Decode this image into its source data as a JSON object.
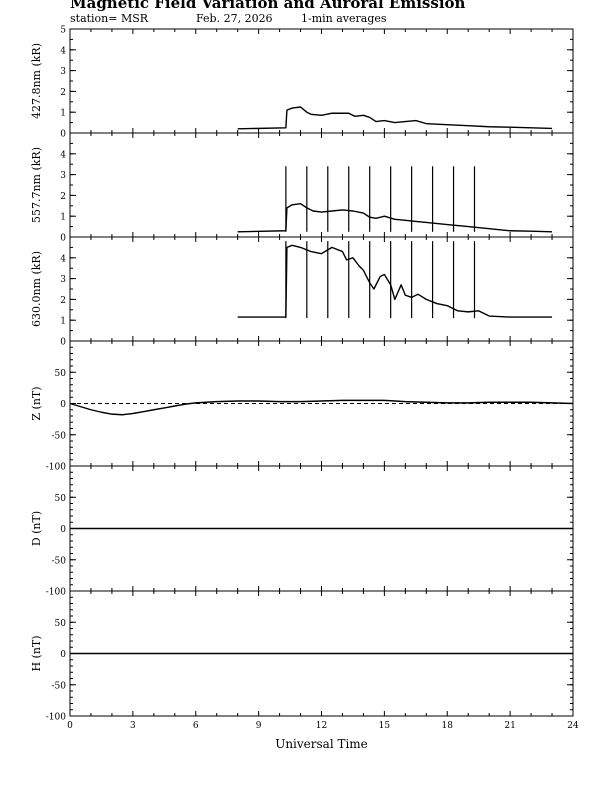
{
  "header": {
    "title": "Magnetic Field Variation and Auroral Emission",
    "station": "station= MSR",
    "date": "Feb. 27, 2026",
    "averaging": "1-min averages"
  },
  "chart_data": {
    "type": "line",
    "xlabel": "Universal Time",
    "xlim": [
      0,
      24
    ],
    "xticks": [
      0,
      3,
      6,
      9,
      12,
      15,
      18,
      21,
      24
    ],
    "panels": [
      {
        "id": "4278",
        "ylabel": "427.8nm (kR)",
        "ylim": [
          0,
          5
        ],
        "yticks": [
          0,
          1,
          2,
          3,
          4,
          5
        ],
        "x": [
          8.0,
          10.3,
          10.35,
          10.6,
          11.0,
          11.3,
          11.5,
          12.0,
          12.5,
          13.0,
          13.3,
          13.6,
          14.0,
          14.3,
          14.6,
          15.0,
          15.5,
          16.0,
          16.5,
          17.0,
          18.0,
          19.0,
          20.0,
          21.0,
          22.0,
          23.0
        ],
        "y": [
          0.2,
          0.25,
          1.1,
          1.2,
          1.25,
          1.0,
          0.9,
          0.85,
          0.95,
          0.95,
          0.95,
          0.8,
          0.85,
          0.75,
          0.55,
          0.6,
          0.5,
          0.55,
          0.6,
          0.45,
          0.4,
          0.35,
          0.3,
          0.28,
          0.25,
          0.22
        ],
        "spikes": [],
        "baseline": null
      },
      {
        "id": "5577",
        "ylabel": "557.7nm (kR)",
        "ylim": [
          0,
          5
        ],
        "yticks": [
          0,
          1,
          2,
          3,
          4
        ],
        "x": [
          8.0,
          10.3,
          10.35,
          10.6,
          11.0,
          11.3,
          11.6,
          12.0,
          12.5,
          13.0,
          13.5,
          14.0,
          14.3,
          14.6,
          15.0,
          15.5,
          16.0,
          16.5,
          17.0,
          18.0,
          19.0,
          20.0,
          21.0,
          22.0,
          23.0
        ],
        "y": [
          0.25,
          0.3,
          1.4,
          1.55,
          1.6,
          1.4,
          1.25,
          1.2,
          1.25,
          1.3,
          1.25,
          1.15,
          0.95,
          0.9,
          1.0,
          0.85,
          0.8,
          0.75,
          0.7,
          0.6,
          0.5,
          0.4,
          0.3,
          0.28,
          0.25
        ],
        "spikes": [
          10.3,
          11.3,
          12.3,
          13.3,
          14.3,
          15.3,
          16.3,
          17.3,
          18.3,
          19.3
        ],
        "spike_top": 3.4,
        "baseline": null
      },
      {
        "id": "6300",
        "ylabel": "630.0nm (kR)",
        "ylim": [
          0,
          5
        ],
        "yticks": [
          0,
          1,
          2,
          3,
          4
        ],
        "x": [
          8.0,
          10.3,
          10.35,
          10.6,
          11.0,
          11.5,
          12.0,
          12.5,
          13.0,
          13.2,
          13.5,
          13.8,
          14.0,
          14.3,
          14.5,
          14.8,
          15.0,
          15.3,
          15.5,
          15.8,
          16.0,
          16.3,
          16.6,
          17.0,
          17.5,
          18.0,
          18.5,
          19.0,
          19.5,
          20.0,
          21.0,
          22.0,
          23.0
        ],
        "y": [
          1.15,
          1.15,
          4.5,
          4.6,
          4.5,
          4.3,
          4.2,
          4.5,
          4.3,
          3.9,
          4.0,
          3.6,
          3.4,
          2.8,
          2.5,
          3.1,
          3.2,
          2.7,
          2.0,
          2.7,
          2.2,
          2.1,
          2.25,
          2.0,
          1.8,
          1.7,
          1.45,
          1.4,
          1.45,
          1.2,
          1.15,
          1.15,
          1.15
        ],
        "spikes": [
          10.3,
          11.3,
          12.3,
          13.3,
          14.3,
          15.3,
          16.3,
          17.3,
          18.3,
          19.3
        ],
        "spike_top": 4.8,
        "spike_bottom": 1.1,
        "baseline": null
      },
      {
        "id": "Z",
        "ylabel": "Z (nT)",
        "ylim": [
          -100,
          100
        ],
        "yticks": [
          -100,
          -50,
          0,
          50
        ],
        "x": [
          0,
          0.5,
          1.0,
          1.5,
          2.0,
          2.5,
          3.0,
          3.5,
          4.0,
          4.5,
          5.0,
          5.5,
          6.0,
          7.0,
          8.0,
          9.0,
          10.0,
          11.0,
          12.0,
          13.0,
          14.0,
          15.0,
          16.0,
          17.0,
          18.0,
          19.0,
          20.0,
          21.0,
          22.0,
          23.0,
          24.0
        ],
        "y": [
          0,
          -5,
          -10,
          -14,
          -17,
          -18,
          -16,
          -13,
          -10,
          -7,
          -4,
          -1,
          1,
          3,
          4,
          4,
          3,
          3,
          4,
          5,
          5,
          5,
          3,
          2,
          1,
          1,
          2,
          2,
          2,
          1,
          0
        ],
        "spikes": [],
        "baseline": 0
      },
      {
        "id": "D",
        "ylabel": "D (nT)",
        "ylim": [
          -100,
          100
        ],
        "yticks": [
          -100,
          -50,
          0,
          50
        ],
        "x": [
          0,
          24
        ],
        "y": [
          0,
          0
        ],
        "spikes": [],
        "baseline": 0
      },
      {
        "id": "H",
        "ylabel": "H (nT)",
        "ylim": [
          -100,
          100
        ],
        "yticks": [
          -100,
          -50,
          0,
          50
        ],
        "x": [
          0,
          24
        ],
        "y": [
          0,
          0
        ],
        "spikes": [],
        "baseline": 0
      }
    ]
  }
}
